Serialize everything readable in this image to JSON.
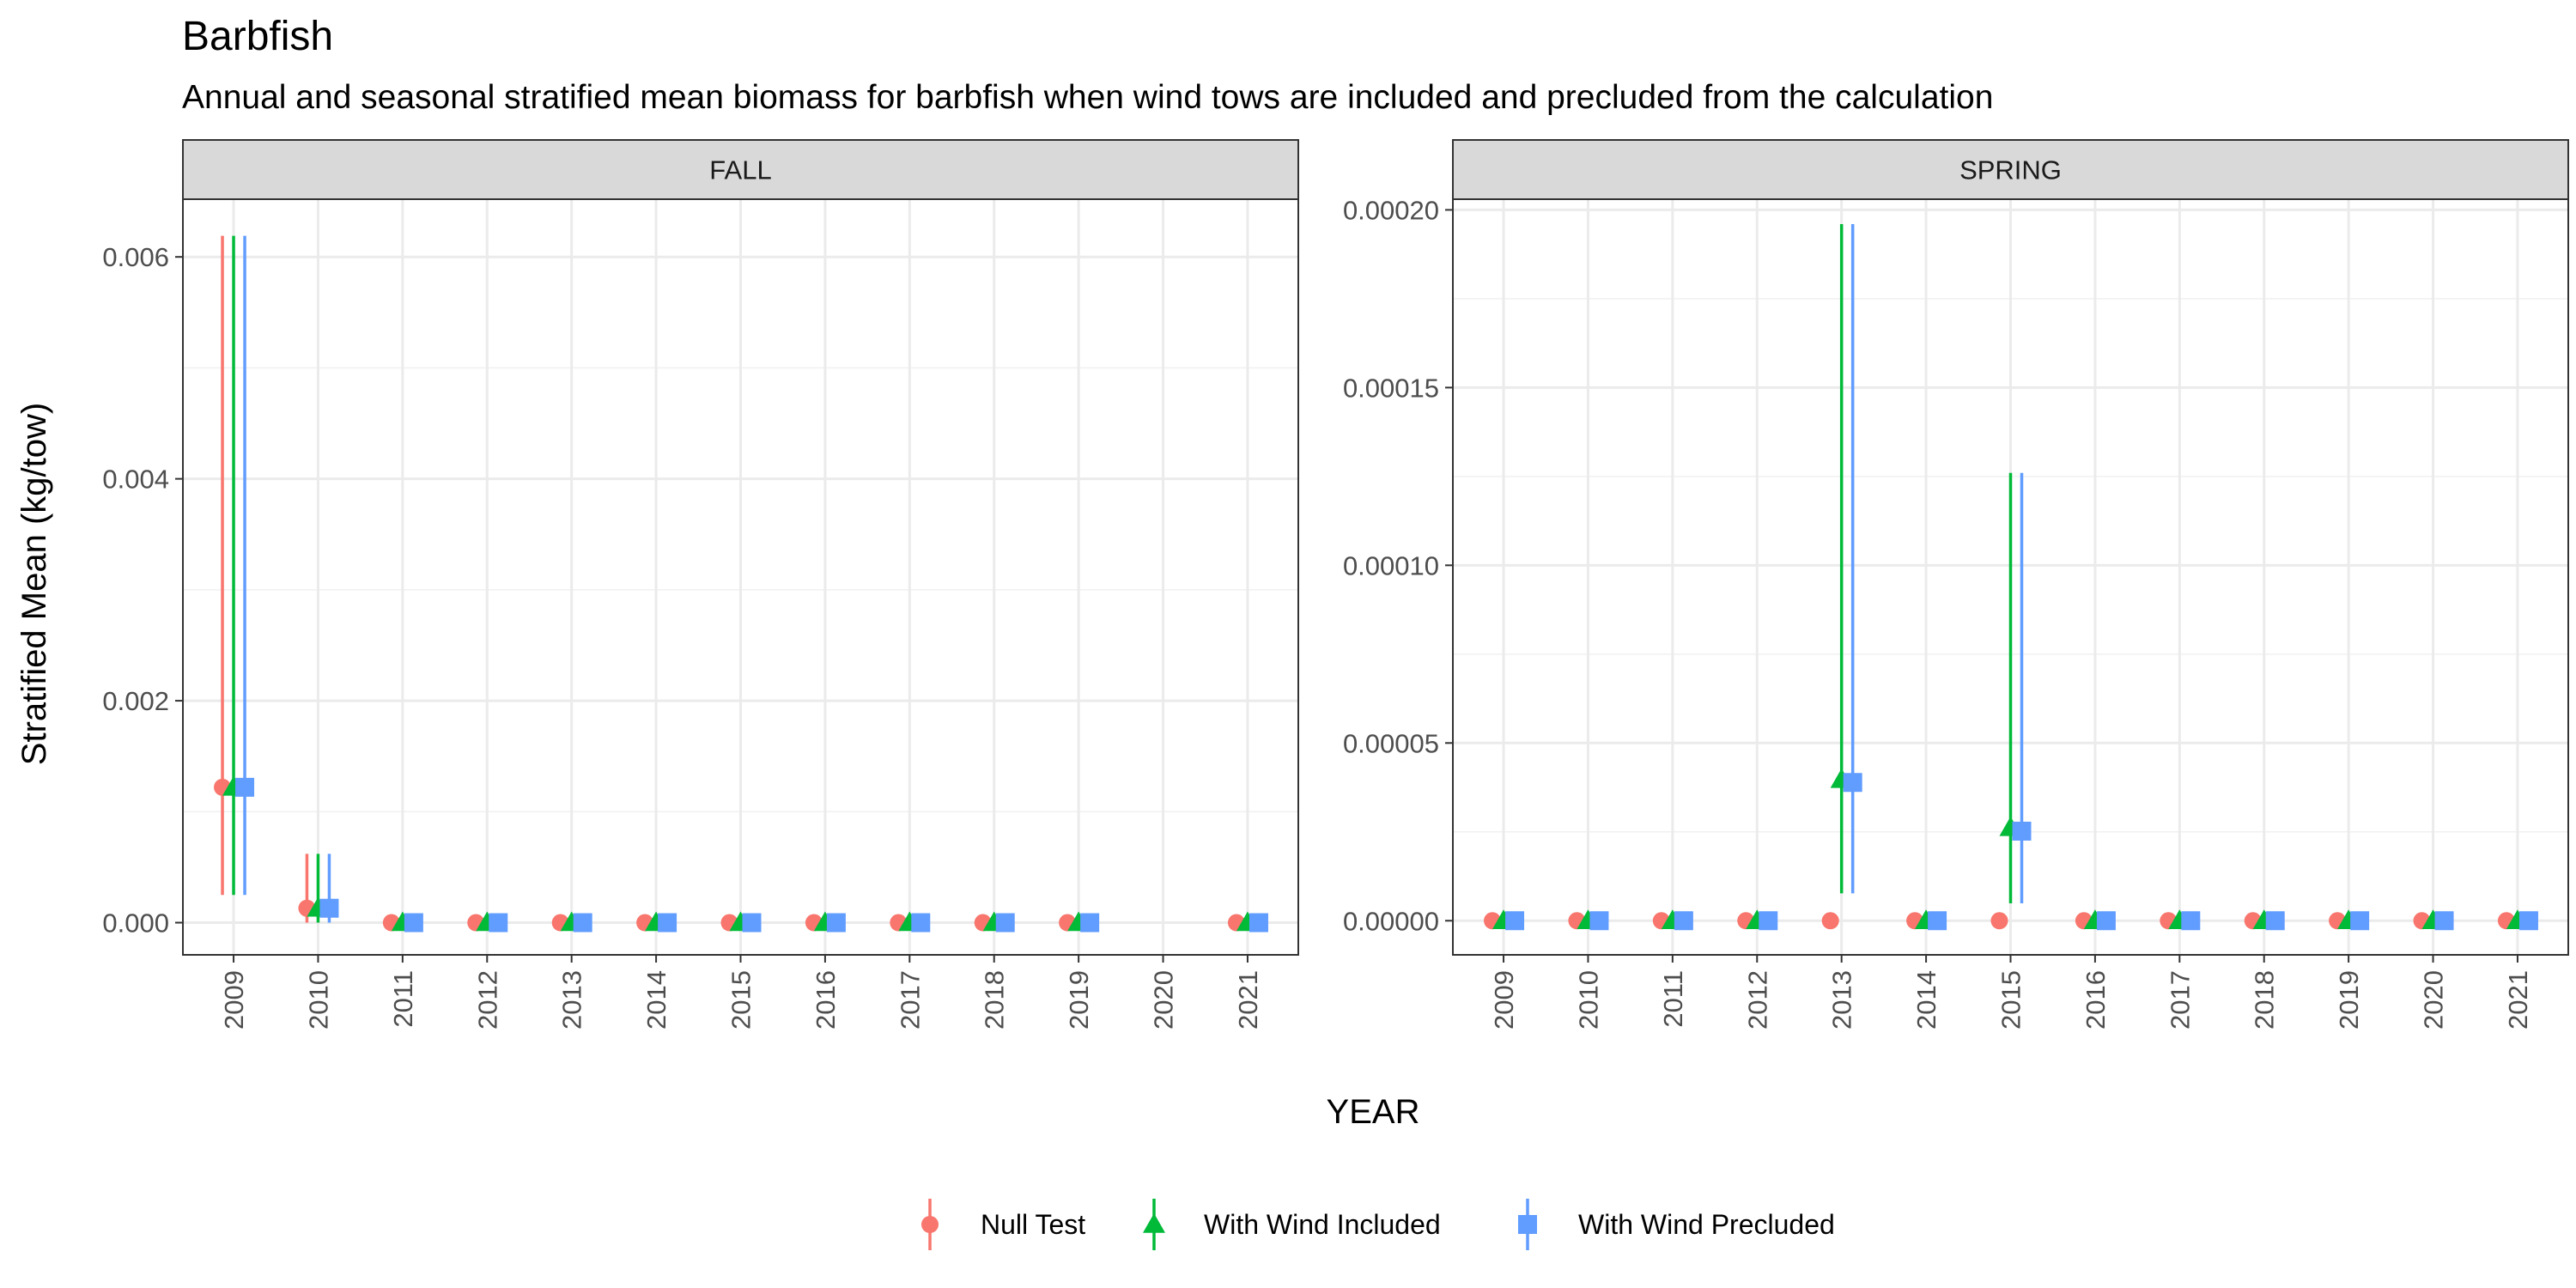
{
  "chart_data": {
    "type": "scatter",
    "title": "Barbfish",
    "subtitle": "Annual and seasonal stratified mean biomass for barbfish when wind tows are included and precluded from the calculation",
    "xlabel": "YEAR",
    "ylabel": "Stratified Mean (kg/tow)",
    "legend_position": "bottom",
    "grid": true,
    "series": [
      {
        "name": "Null Test",
        "color": "#F8766D",
        "shape": "circle"
      },
      {
        "name": "With Wind Included",
        "color": "#00BA38",
        "shape": "triangle"
      },
      {
        "name": "With Wind Precluded",
        "color": "#619CFF",
        "shape": "square"
      }
    ],
    "panels": [
      {
        "strip": "FALL",
        "categories": [
          "2009",
          "2010",
          "2011",
          "2012",
          "2013",
          "2014",
          "2015",
          "2016",
          "2017",
          "2018",
          "2019",
          "2020",
          "2021"
        ],
        "ylim": [
          -0.00029,
          0.00652
        ],
        "yticks": [
          0,
          0.002,
          0.004,
          0.006
        ],
        "ytick_labels": [
          "0.000",
          "0.002",
          "0.004",
          "0.006"
        ],
        "points": [
          [
            {
              "x": "2009",
              "y": 0.00122,
              "lo": 0.00025,
              "hi": 0.00619
            },
            {
              "x": "2010",
              "y": 0.00013,
              "lo": 0.0,
              "hi": 0.00062
            },
            {
              "x": "2011",
              "y": 0.0
            },
            {
              "x": "2012",
              "y": 0.0
            },
            {
              "x": "2013",
              "y": 0.0
            },
            {
              "x": "2014",
              "y": 0.0
            },
            {
              "x": "2015",
              "y": 0.0
            },
            {
              "x": "2016",
              "y": 0.0
            },
            {
              "x": "2017",
              "y": 0.0
            },
            {
              "x": "2018",
              "y": 0.0
            },
            {
              "x": "2019",
              "y": 0.0
            },
            {
              "x": "2021",
              "y": 0.0
            }
          ],
          [
            {
              "x": "2009",
              "y": 0.00122,
              "lo": 0.00025,
              "hi": 0.00619
            },
            {
              "x": "2010",
              "y": 0.00013,
              "lo": 0.0,
              "hi": 0.00062
            },
            {
              "x": "2011",
              "y": 0.0
            },
            {
              "x": "2012",
              "y": 0.0
            },
            {
              "x": "2013",
              "y": 0.0
            },
            {
              "x": "2014",
              "y": 0.0
            },
            {
              "x": "2015",
              "y": 0.0
            },
            {
              "x": "2016",
              "y": 0.0
            },
            {
              "x": "2017",
              "y": 0.0
            },
            {
              "x": "2018",
              "y": 0.0
            },
            {
              "x": "2019",
              "y": 0.0
            },
            {
              "x": "2021",
              "y": 0.0
            }
          ],
          [
            {
              "x": "2009",
              "y": 0.00122,
              "lo": 0.00025,
              "hi": 0.00619
            },
            {
              "x": "2010",
              "y": 0.00013,
              "lo": 0.0,
              "hi": 0.00062
            },
            {
              "x": "2011",
              "y": 0.0
            },
            {
              "x": "2012",
              "y": 0.0
            },
            {
              "x": "2013",
              "y": 0.0
            },
            {
              "x": "2014",
              "y": 0.0
            },
            {
              "x": "2015",
              "y": 0.0
            },
            {
              "x": "2016",
              "y": 0.0
            },
            {
              "x": "2017",
              "y": 0.0
            },
            {
              "x": "2018",
              "y": 0.0
            },
            {
              "x": "2019",
              "y": 0.0
            },
            {
              "x": "2021",
              "y": 0.0
            }
          ]
        ]
      },
      {
        "strip": "SPRING",
        "categories": [
          "2009",
          "2010",
          "2011",
          "2012",
          "2013",
          "2014",
          "2015",
          "2016",
          "2017",
          "2018",
          "2019",
          "2020",
          "2021"
        ],
        "ylim": [
          -9.6e-06,
          0.000203
        ],
        "yticks": [
          0,
          5e-05,
          0.0001,
          0.00015,
          0.0002
        ],
        "ytick_labels": [
          "0.00000",
          "0.00005",
          "0.00010",
          "0.00015",
          "0.00020"
        ],
        "points": [
          [
            {
              "x": "2009",
              "y": 0.0
            },
            {
              "x": "2010",
              "y": 0.0
            },
            {
              "x": "2011",
              "y": 0.0
            },
            {
              "x": "2012",
              "y": 0.0
            },
            {
              "x": "2013",
              "y": 0.0
            },
            {
              "x": "2014",
              "y": 0.0
            },
            {
              "x": "2015",
              "y": 0.0
            },
            {
              "x": "2016",
              "y": 0.0
            },
            {
              "x": "2017",
              "y": 0.0
            },
            {
              "x": "2018",
              "y": 0.0
            },
            {
              "x": "2019",
              "y": 0.0
            },
            {
              "x": "2020",
              "y": 0.0
            },
            {
              "x": "2021",
              "y": 0.0
            }
          ],
          [
            {
              "x": "2009",
              "y": 0.0
            },
            {
              "x": "2010",
              "y": 0.0
            },
            {
              "x": "2011",
              "y": 0.0
            },
            {
              "x": "2012",
              "y": 0.0
            },
            {
              "x": "2013",
              "y": 3.97e-05,
              "lo": 7.7e-06,
              "hi": 0.000196
            },
            {
              "x": "2014",
              "y": 0.0
            },
            {
              "x": "2015",
              "y": 2.62e-05,
              "lo": 4.9e-06,
              "hi": 0.000126
            },
            {
              "x": "2016",
              "y": 0.0
            },
            {
              "x": "2017",
              "y": 0.0
            },
            {
              "x": "2018",
              "y": 0.0
            },
            {
              "x": "2019",
              "y": 0.0
            },
            {
              "x": "2020",
              "y": 0.0
            },
            {
              "x": "2021",
              "y": 0.0
            }
          ],
          [
            {
              "x": "2009",
              "y": 0.0
            },
            {
              "x": "2010",
              "y": 0.0
            },
            {
              "x": "2011",
              "y": 0.0
            },
            {
              "x": "2012",
              "y": 0.0
            },
            {
              "x": "2013",
              "y": 3.89e-05,
              "lo": 7.7e-06,
              "hi": 0.000196
            },
            {
              "x": "2014",
              "y": 0.0
            },
            {
              "x": "2015",
              "y": 2.52e-05,
              "lo": 4.9e-06,
              "hi": 0.000126
            },
            {
              "x": "2016",
              "y": 0.0
            },
            {
              "x": "2017",
              "y": 0.0
            },
            {
              "x": "2018",
              "y": 0.0
            },
            {
              "x": "2019",
              "y": 0.0
            },
            {
              "x": "2020",
              "y": 0.0
            },
            {
              "x": "2021",
              "y": 0.0
            }
          ]
        ]
      }
    ]
  }
}
